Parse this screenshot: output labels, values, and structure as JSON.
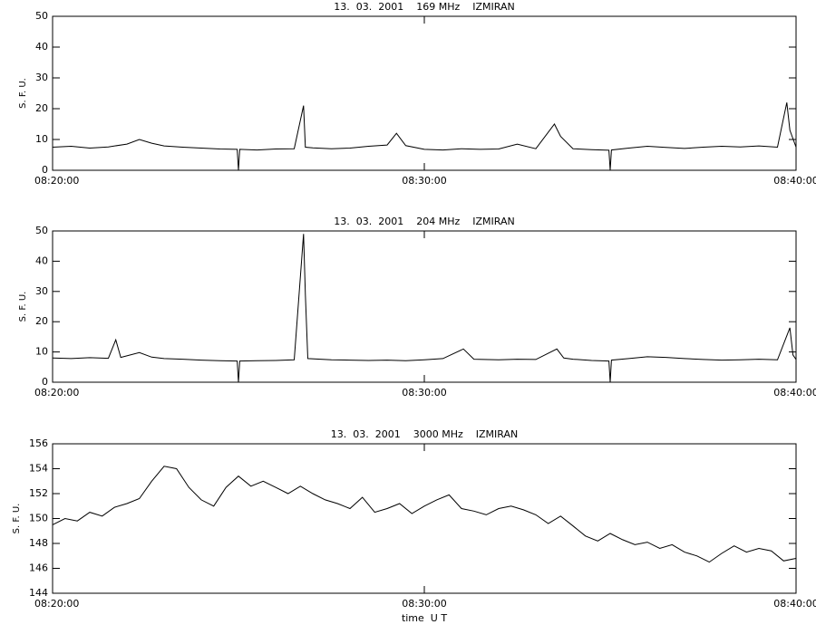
{
  "chart_data": [
    {
      "type": "line",
      "title": "13.  03.  2001    169 MHz    IZMIRAN",
      "ylabel": "S. F. U.",
      "color": "#000000",
      "xlim": [
        "08:20:00",
        "08:40:00"
      ],
      "xticks": [
        "08:20:00",
        "08:30:00",
        "08:40:00"
      ],
      "ylim": [
        0,
        50
      ],
      "yticks": [
        0,
        10,
        20,
        30,
        40,
        50
      ],
      "x": [
        "08:20:00",
        "08:20:30",
        "08:21:00",
        "08:21:30",
        "08:22:00",
        "08:22:20",
        "08:22:40",
        "08:23:00",
        "08:23:30",
        "08:24:00",
        "08:24:30",
        "08:24:58",
        "08:25:00",
        "08:25:02",
        "08:25:30",
        "08:26:00",
        "08:26:30",
        "08:26:45",
        "08:26:48",
        "08:27:00",
        "08:27:30",
        "08:28:00",
        "08:28:30",
        "08:29:00",
        "08:29:15",
        "08:29:30",
        "08:30:00",
        "08:30:30",
        "08:31:00",
        "08:31:30",
        "08:32:00",
        "08:32:30",
        "08:33:00",
        "08:33:30",
        "08:33:40",
        "08:34:00",
        "08:34:30",
        "08:34:58",
        "08:35:00",
        "08:35:02",
        "08:35:30",
        "08:36:00",
        "08:36:30",
        "08:37:00",
        "08:37:30",
        "08:38:00",
        "08:38:30",
        "08:39:00",
        "08:39:30",
        "08:39:45",
        "08:39:50",
        "08:40:00"
      ],
      "values": [
        7.5,
        7.8,
        7.2,
        7.6,
        8.5,
        10,
        8.8,
        7.9,
        7.5,
        7.2,
        6.9,
        6.8,
        0,
        6.8,
        6.6,
        6.9,
        7.0,
        21,
        7.5,
        7.3,
        7.0,
        7.2,
        7.8,
        8.2,
        12,
        8.0,
        6.8,
        6.6,
        7.0,
        6.8,
        6.9,
        8.5,
        7.0,
        15,
        11,
        7.0,
        6.7,
        6.5,
        0,
        6.6,
        7.2,
        7.8,
        7.4,
        7.1,
        7.5,
        7.8,
        7.6,
        7.9,
        7.5,
        22,
        13,
        7.5
      ]
    },
    {
      "type": "line",
      "title": "13.  03.  2001    204 MHz    IZMIRAN",
      "ylabel": "S. F. U.",
      "color": "#000000",
      "xlim": [
        "08:20:00",
        "08:40:00"
      ],
      "xticks": [
        "08:20:00",
        "08:30:00",
        "08:40:00"
      ],
      "ylim": [
        0,
        50
      ],
      "yticks": [
        0,
        10,
        20,
        30,
        40,
        50
      ],
      "x": [
        "08:20:00",
        "08:20:30",
        "08:21:00",
        "08:21:30",
        "08:21:42",
        "08:21:50",
        "08:22:20",
        "08:22:40",
        "08:23:00",
        "08:23:30",
        "08:24:00",
        "08:24:30",
        "08:24:58",
        "08:25:00",
        "08:25:02",
        "08:25:30",
        "08:26:00",
        "08:26:30",
        "08:26:45",
        "08:26:48",
        "08:26:52",
        "08:27:30",
        "08:28:00",
        "08:28:30",
        "08:29:00",
        "08:29:30",
        "08:30:00",
        "08:30:30",
        "08:31:03",
        "08:31:20",
        "08:32:00",
        "08:32:30",
        "08:33:00",
        "08:33:34",
        "08:33:45",
        "08:34:00",
        "08:34:30",
        "08:34:58",
        "08:35:00",
        "08:35:02",
        "08:35:30",
        "08:36:00",
        "08:36:30",
        "08:37:00",
        "08:37:30",
        "08:38:00",
        "08:38:30",
        "08:39:00",
        "08:39:30",
        "08:39:50",
        "08:39:55",
        "08:40:00"
      ],
      "values": [
        8,
        7.8,
        8.1,
        7.9,
        14,
        8.2,
        9.8,
        8.3,
        7.8,
        7.6,
        7.3,
        7.1,
        7.0,
        0,
        7.0,
        7.1,
        7.2,
        7.4,
        49,
        29,
        7.8,
        7.4,
        7.3,
        7.2,
        7.3,
        7.1,
        7.4,
        7.8,
        11,
        7.6,
        7.4,
        7.6,
        7.5,
        11,
        8.0,
        7.6,
        7.2,
        7.0,
        0,
        7.3,
        7.8,
        8.4,
        8.2,
        7.8,
        7.5,
        7.3,
        7.4,
        7.6,
        7.4,
        18,
        9,
        7.5
      ]
    },
    {
      "type": "line",
      "title": "13.  03.  2001    3000 MHz    IZMIRAN",
      "ylabel": "S. F. U.",
      "xlabel": "time  U T",
      "color": "#000000",
      "xlim": [
        "08:20:00",
        "08:40:00"
      ],
      "xticks": [
        "08:20:00",
        "08:30:00",
        "08:40:00"
      ],
      "ylim": [
        144,
        156
      ],
      "yticks": [
        144,
        146,
        148,
        150,
        152,
        154,
        156
      ],
      "x": [
        "08:20:00",
        "08:20:20",
        "08:20:40",
        "08:21:00",
        "08:21:20",
        "08:21:40",
        "08:22:00",
        "08:22:20",
        "08:22:40",
        "08:23:00",
        "08:23:20",
        "08:23:40",
        "08:24:00",
        "08:24:20",
        "08:24:40",
        "08:25:00",
        "08:25:20",
        "08:25:40",
        "08:26:00",
        "08:26:20",
        "08:26:40",
        "08:27:00",
        "08:27:20",
        "08:27:40",
        "08:28:00",
        "08:28:20",
        "08:28:40",
        "08:29:00",
        "08:29:20",
        "08:29:40",
        "08:30:00",
        "08:30:20",
        "08:30:40",
        "08:31:00",
        "08:31:20",
        "08:31:40",
        "08:32:00",
        "08:32:20",
        "08:32:40",
        "08:33:00",
        "08:33:20",
        "08:33:40",
        "08:34:00",
        "08:34:20",
        "08:34:40",
        "08:35:00",
        "08:35:20",
        "08:35:40",
        "08:36:00",
        "08:36:20",
        "08:36:40",
        "08:37:00",
        "08:37:20",
        "08:37:40",
        "08:38:00",
        "08:38:20",
        "08:38:40",
        "08:39:00",
        "08:39:20",
        "08:39:40",
        "08:40:00"
      ],
      "values": [
        149.5,
        150.0,
        149.8,
        150.5,
        150.2,
        150.9,
        151.2,
        151.6,
        153.0,
        154.2,
        154.0,
        152.5,
        151.5,
        151.0,
        152.5,
        153.4,
        152.6,
        153.0,
        152.5,
        152.0,
        152.6,
        152.0,
        151.5,
        151.2,
        150.8,
        151.7,
        150.5,
        150.8,
        151.2,
        150.4,
        151.0,
        151.5,
        151.9,
        150.8,
        150.6,
        150.3,
        150.8,
        151.0,
        150.7,
        150.3,
        149.6,
        150.2,
        149.4,
        148.6,
        148.2,
        148.8,
        148.3,
        147.9,
        148.1,
        147.6,
        147.9,
        147.3,
        147.0,
        146.5,
        147.2,
        147.8,
        147.3,
        147.6,
        147.4,
        146.6,
        146.8
      ]
    }
  ]
}
